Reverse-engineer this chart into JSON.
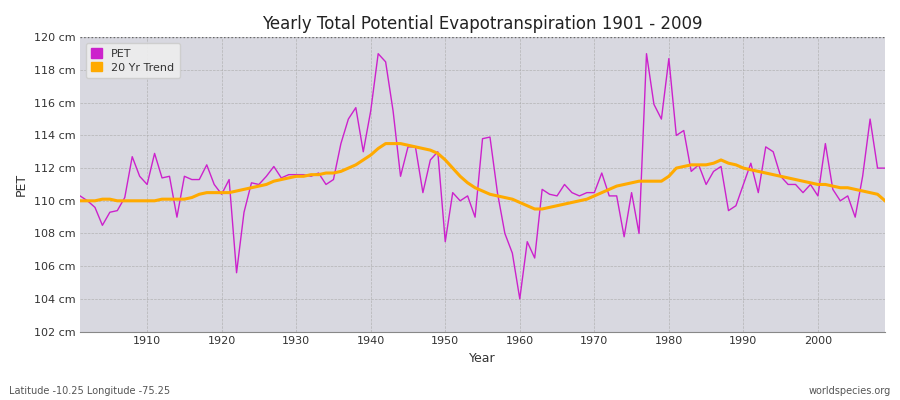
{
  "title": "Yearly Total Potential Evapotranspiration 1901 - 2009",
  "xlabel": "Year",
  "ylabel": "PET",
  "bottom_left_label": "Latitude -10.25 Longitude -75.25",
  "bottom_right_label": "worldspecies.org",
  "ylim": [
    102,
    120
  ],
  "xlim": [
    1901,
    2009
  ],
  "ytick_labels": [
    "102 cm",
    "104 cm",
    "106 cm",
    "108 cm",
    "110 cm",
    "112 cm",
    "114 cm",
    "116 cm",
    "118 cm",
    "120 cm"
  ],
  "ytick_values": [
    102,
    104,
    106,
    108,
    110,
    112,
    114,
    116,
    118,
    120
  ],
  "xtick_values": [
    1910,
    1920,
    1930,
    1940,
    1950,
    1960,
    1970,
    1980,
    1990,
    2000
  ],
  "pet_color": "#cc22cc",
  "trend_color": "#ffaa00",
  "fig_bg_color": "#ffffff",
  "plot_bg_color": "#d8d8e0",
  "pet_years": [
    1901,
    1902,
    1903,
    1904,
    1905,
    1906,
    1907,
    1908,
    1909,
    1910,
    1911,
    1912,
    1913,
    1914,
    1915,
    1916,
    1917,
    1918,
    1919,
    1920,
    1921,
    1922,
    1923,
    1924,
    1925,
    1926,
    1927,
    1928,
    1929,
    1930,
    1931,
    1932,
    1933,
    1934,
    1935,
    1936,
    1937,
    1938,
    1939,
    1940,
    1941,
    1942,
    1943,
    1944,
    1945,
    1946,
    1947,
    1948,
    1949,
    1950,
    1951,
    1952,
    1953,
    1954,
    1955,
    1956,
    1957,
    1958,
    1959,
    1960,
    1961,
    1962,
    1963,
    1964,
    1965,
    1966,
    1967,
    1968,
    1969,
    1970,
    1971,
    1972,
    1973,
    1974,
    1975,
    1976,
    1977,
    1978,
    1979,
    1980,
    1981,
    1982,
    1983,
    1984,
    1985,
    1986,
    1987,
    1988,
    1989,
    1990,
    1991,
    1992,
    1993,
    1994,
    1995,
    1996,
    1997,
    1998,
    1999,
    2000,
    2001,
    2002,
    2003,
    2004,
    2005,
    2006,
    2007,
    2008,
    2009
  ],
  "pet_values": [
    110.3,
    110.0,
    109.6,
    108.5,
    109.3,
    109.4,
    110.2,
    112.7,
    111.5,
    111.0,
    112.9,
    111.4,
    111.5,
    109.0,
    111.5,
    111.3,
    111.3,
    112.2,
    111.0,
    110.4,
    111.3,
    105.6,
    109.3,
    111.1,
    111.0,
    111.5,
    112.1,
    111.4,
    111.6,
    111.6,
    111.6,
    111.5,
    111.7,
    111.0,
    111.3,
    113.5,
    115.0,
    115.7,
    113.0,
    115.5,
    119.0,
    118.5,
    115.5,
    111.5,
    113.3,
    113.3,
    110.5,
    112.5,
    113.0,
    107.5,
    110.5,
    110.0,
    110.3,
    109.0,
    113.8,
    113.9,
    110.5,
    108.0,
    106.8,
    104.0,
    107.5,
    106.5,
    110.7,
    110.4,
    110.3,
    111.0,
    110.5,
    110.3,
    110.5,
    110.5,
    111.7,
    110.3,
    110.3,
    107.8,
    110.5,
    108.0,
    119.0,
    115.9,
    115.0,
    118.7,
    114.0,
    114.3,
    111.8,
    112.2,
    111.0,
    111.8,
    112.1,
    109.4,
    109.7,
    111.0,
    112.3,
    110.5,
    113.3,
    113.0,
    111.5,
    111.0,
    111.0,
    110.5,
    111.0,
    110.3,
    113.5,
    110.7,
    110.0,
    110.3,
    109.0,
    111.5,
    115.0,
    112.0,
    112.0
  ],
  "trend_years": [
    1901,
    1902,
    1903,
    1904,
    1905,
    1906,
    1907,
    1908,
    1909,
    1910,
    1911,
    1912,
    1913,
    1914,
    1915,
    1916,
    1917,
    1918,
    1919,
    1920,
    1921,
    1922,
    1923,
    1924,
    1925,
    1926,
    1927,
    1928,
    1929,
    1930,
    1931,
    1932,
    1933,
    1934,
    1935,
    1936,
    1937,
    1938,
    1939,
    1940,
    1941,
    1942,
    1943,
    1944,
    1945,
    1946,
    1947,
    1948,
    1949,
    1950,
    1951,
    1952,
    1953,
    1954,
    1955,
    1956,
    1957,
    1958,
    1959,
    1960,
    1961,
    1962,
    1963,
    1964,
    1965,
    1966,
    1967,
    1968,
    1969,
    1970,
    1971,
    1972,
    1973,
    1974,
    1975,
    1976,
    1977,
    1978,
    1979,
    1980,
    1981,
    1982,
    1983,
    1984,
    1985,
    1986,
    1987,
    1988,
    1989,
    1990,
    1991,
    1992,
    1993,
    1994,
    1995,
    1996,
    1997,
    1998,
    1999,
    2000,
    2001,
    2002,
    2003,
    2004,
    2005,
    2006,
    2007,
    2008,
    2009
  ],
  "trend_values": [
    110.0,
    110.0,
    110.0,
    110.1,
    110.1,
    110.0,
    110.0,
    110.0,
    110.0,
    110.0,
    110.0,
    110.1,
    110.1,
    110.1,
    110.1,
    110.2,
    110.4,
    110.5,
    110.5,
    110.5,
    110.5,
    110.6,
    110.7,
    110.8,
    110.9,
    111.0,
    111.2,
    111.3,
    111.4,
    111.5,
    111.5,
    111.6,
    111.6,
    111.7,
    111.7,
    111.8,
    112.0,
    112.2,
    112.5,
    112.8,
    113.2,
    113.5,
    113.5,
    113.5,
    113.4,
    113.3,
    113.2,
    113.1,
    112.9,
    112.5,
    112.0,
    111.5,
    111.1,
    110.8,
    110.6,
    110.4,
    110.3,
    110.2,
    110.1,
    109.9,
    109.7,
    109.5,
    109.5,
    109.6,
    109.7,
    109.8,
    109.9,
    110.0,
    110.1,
    110.3,
    110.5,
    110.7,
    110.9,
    111.0,
    111.1,
    111.2,
    111.2,
    111.2,
    111.2,
    111.5,
    112.0,
    112.1,
    112.2,
    112.2,
    112.2,
    112.3,
    112.5,
    112.3,
    112.2,
    112.0,
    111.9,
    111.8,
    111.7,
    111.6,
    111.5,
    111.4,
    111.3,
    111.2,
    111.1,
    111.0,
    111.0,
    110.9,
    110.8,
    110.8,
    110.7,
    110.6,
    110.5,
    110.4,
    110.0
  ]
}
